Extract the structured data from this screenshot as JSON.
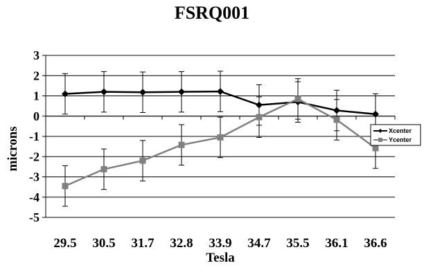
{
  "chart_data": {
    "type": "line",
    "title": "FSRQ001",
    "xlabel": "Tesla",
    "ylabel": "microns",
    "categories": [
      "29.5",
      "30.5",
      "31.7",
      "32.8",
      "33.9",
      "34.7",
      "35.5",
      "36.1",
      "36.6"
    ],
    "ylim": [
      -5,
      3
    ],
    "yticks": [
      "3",
      "2",
      "1",
      "0",
      "-1",
      "-2",
      "-3",
      "-4",
      "-5"
    ],
    "grid": true,
    "legend_position": "right",
    "error_bar": 1.0,
    "series": [
      {
        "name": "Xcenter",
        "color": "#000000",
        "marker": "diamond",
        "values": [
          1.1,
          1.2,
          1.18,
          1.2,
          1.22,
          0.55,
          0.7,
          0.28,
          0.1
        ]
      },
      {
        "name": "Ycenter",
        "color": "#808080",
        "marker": "square",
        "values": [
          -3.45,
          -2.62,
          -2.2,
          -1.42,
          -1.05,
          -0.05,
          0.85,
          -0.18,
          -1.58
        ]
      }
    ]
  }
}
